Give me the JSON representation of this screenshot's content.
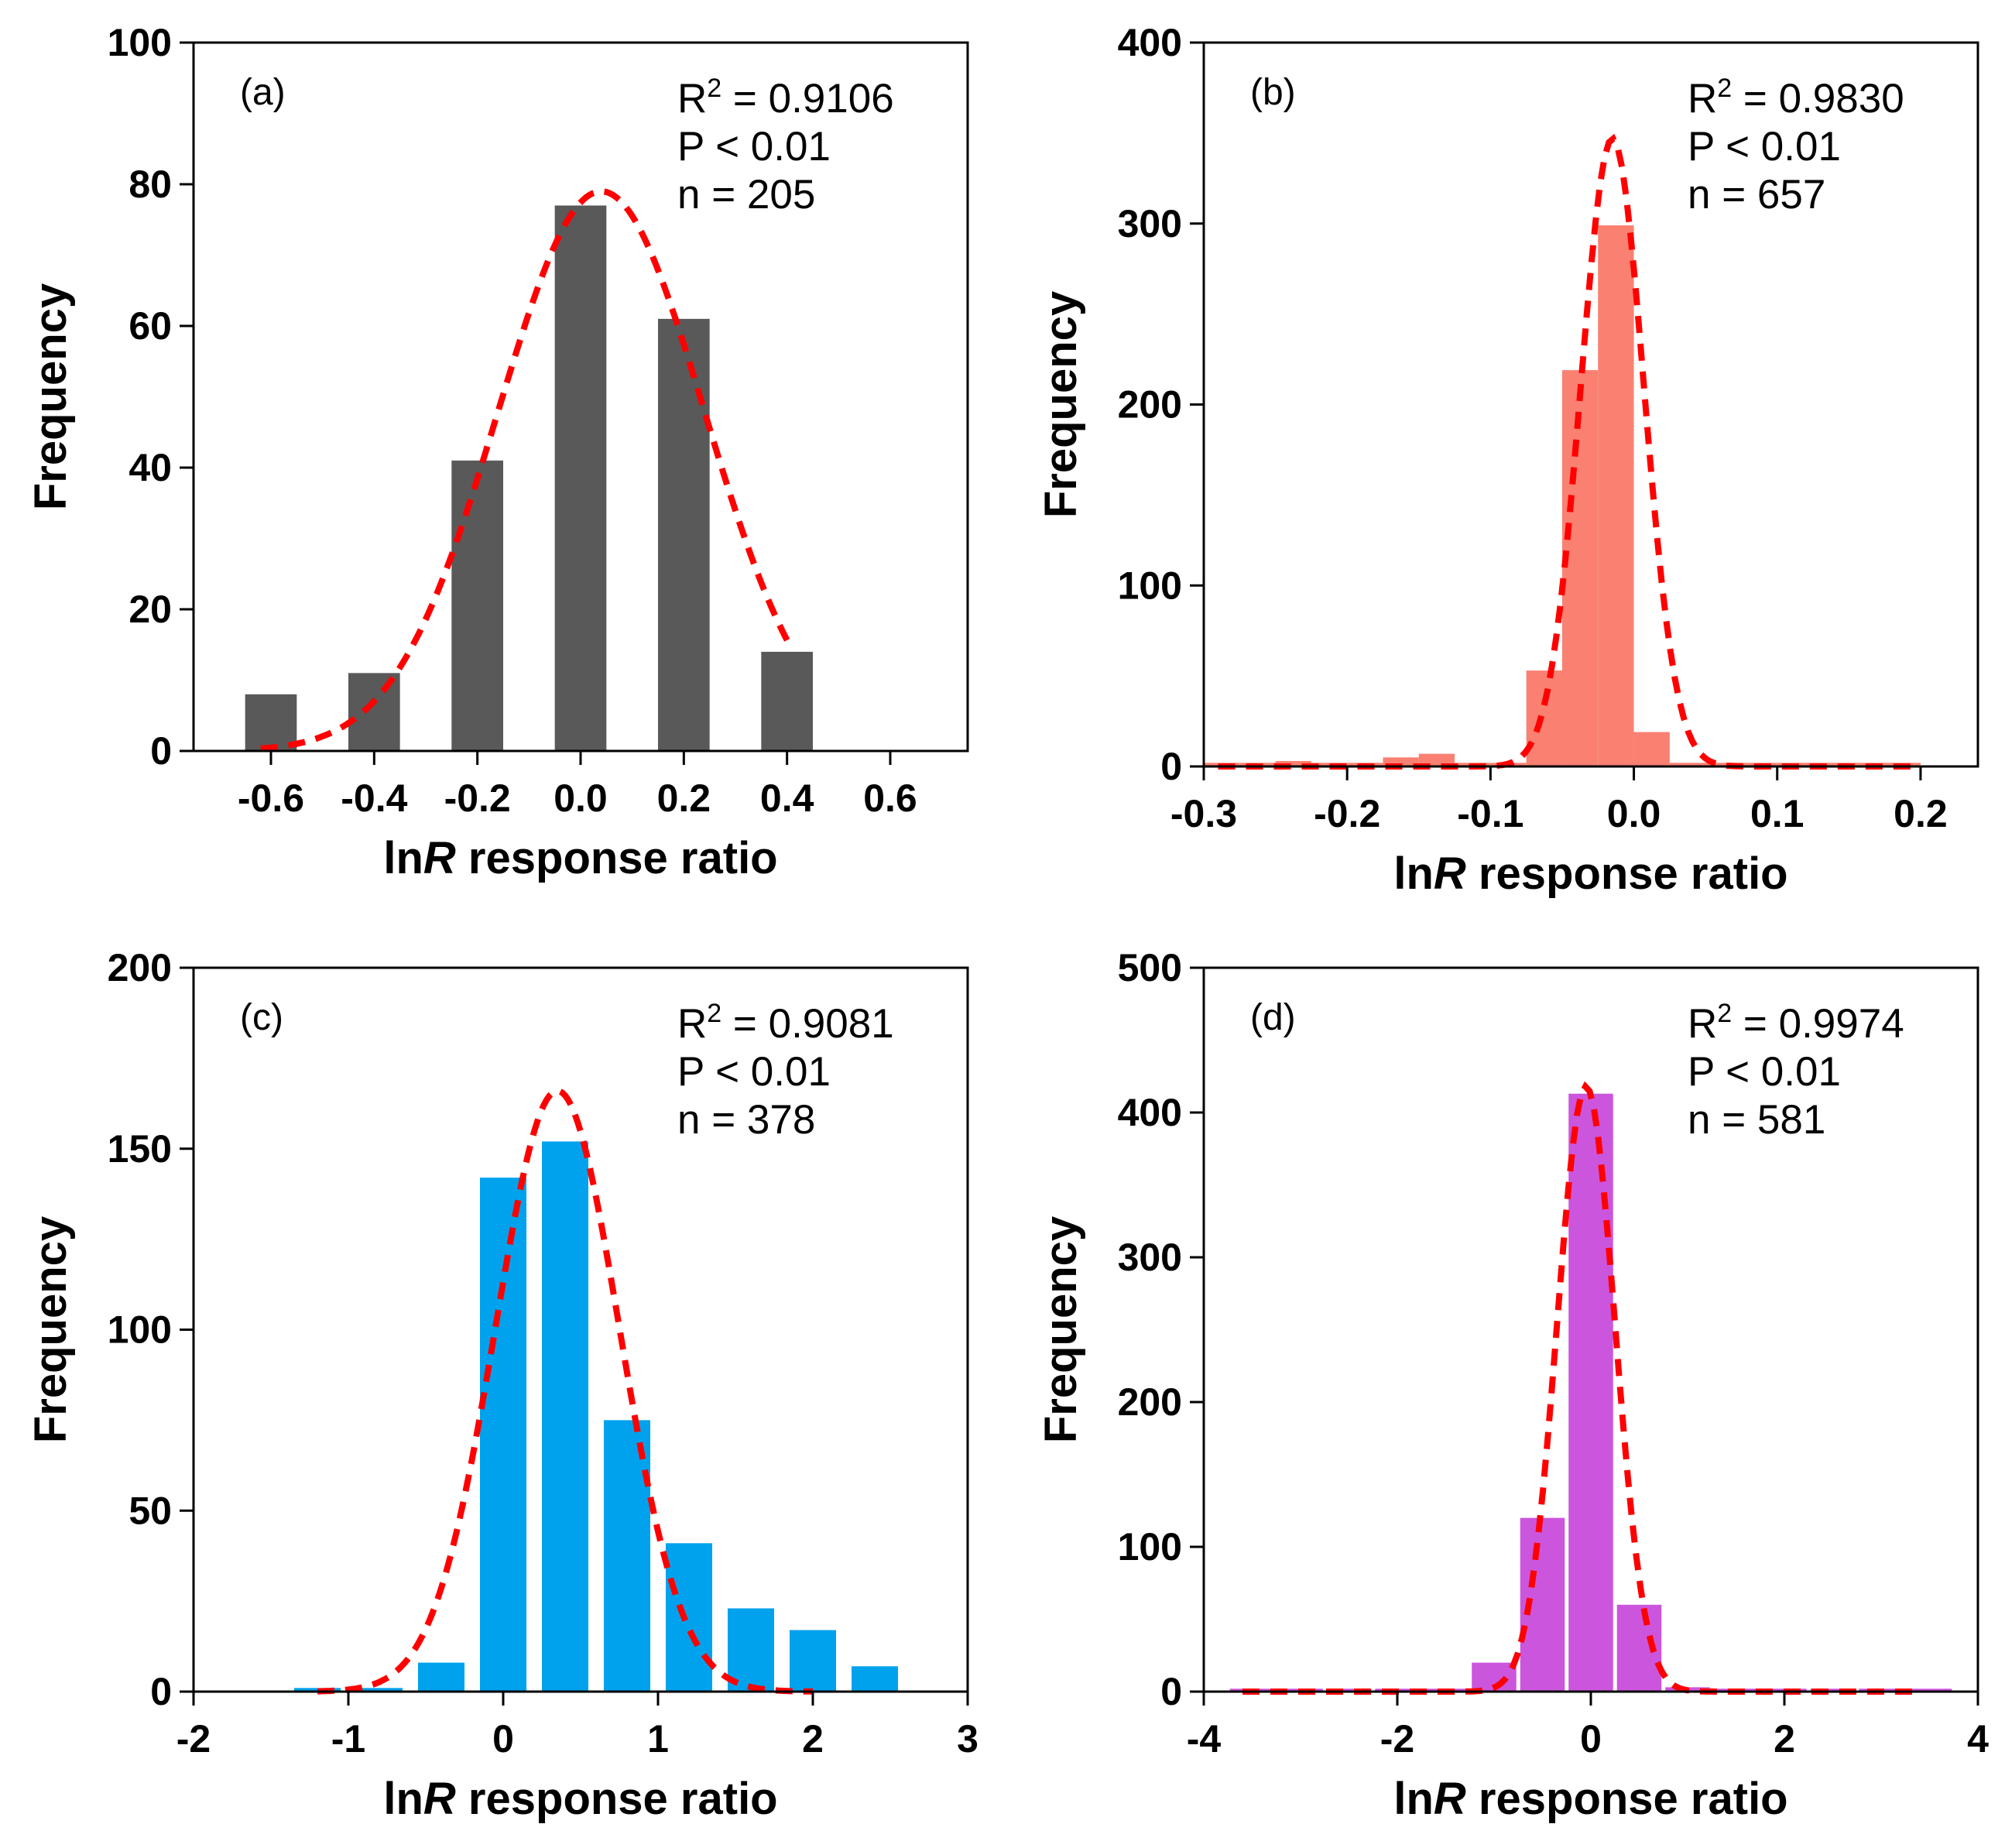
{
  "chart_data": [
    {
      "id": "a",
      "type": "bar",
      "panel_label": "(a)",
      "bar_color": "#595959",
      "fit_color": "#ff0000",
      "stats": {
        "r2_prefix": "R",
        "r2_sup": "2",
        "r2_value": " = 0.9106",
        "p": "P < 0.01",
        "n": "n = 205"
      },
      "xlabel_prefix": "ln",
      "xlabel_italic": "R",
      "xlabel_suffix": " response ratio",
      "ylabel": "Frequency",
      "xlim": [
        -0.75,
        0.75
      ],
      "ylim": [
        0,
        100
      ],
      "xticks": [
        -0.6,
        -0.4,
        -0.2,
        0.0,
        0.2,
        0.4,
        0.6
      ],
      "xtick_labels": [
        "-0.6",
        "-0.4",
        "-0.2",
        "0.0",
        "0.2",
        "0.4",
        "0.6"
      ],
      "yticks": [
        0,
        20,
        40,
        60,
        80,
        100
      ],
      "ytick_labels": [
        "0",
        "20",
        "40",
        "60",
        "80",
        "100"
      ],
      "bin_width": 0.1,
      "bins": [
        {
          "x": -0.6,
          "y": 8
        },
        {
          "x": -0.4,
          "y": 11
        },
        {
          "x": -0.2,
          "y": 41
        },
        {
          "x": 0.0,
          "y": 77
        },
        {
          "x": 0.2,
          "y": 61
        },
        {
          "x": 0.4,
          "y": 14
        }
      ],
      "fit": {
        "peak": 79,
        "mean": 0.04,
        "sd": 0.2,
        "range": [
          -0.62,
          0.4
        ]
      }
    },
    {
      "id": "b",
      "type": "bar",
      "panel_label": "(b)",
      "bar_color": "#fa8072",
      "fit_color": "#ff0000",
      "stats": {
        "r2_prefix": "R",
        "r2_sup": "2",
        "r2_value": " = 0.9830",
        "p": "P < 0.01",
        "n": "n = 657"
      },
      "xlabel_prefix": "ln",
      "xlabel_italic": "R",
      "xlabel_suffix": " response ratio",
      "ylabel": "Frequency",
      "xlim": [
        -0.3,
        0.24
      ],
      "ylim": [
        0,
        400
      ],
      "xticks": [
        -0.3,
        -0.2,
        -0.1,
        0.0,
        0.1,
        0.2
      ],
      "xtick_labels": [
        "-0.3",
        "-0.2",
        "-0.1",
        "0.0",
        "0.1",
        "0.2"
      ],
      "yticks": [
        0,
        100,
        200,
        300,
        400
      ],
      "ytick_labels": [
        "0",
        "100",
        "200",
        "300",
        "400"
      ],
      "bin_width": 0.025,
      "bins": [
        {
          "x": -0.2875,
          "y": 2
        },
        {
          "x": -0.2625,
          "y": 2
        },
        {
          "x": -0.2375,
          "y": 3
        },
        {
          "x": -0.2125,
          "y": 2
        },
        {
          "x": -0.1875,
          "y": 2
        },
        {
          "x": -0.1625,
          "y": 5
        },
        {
          "x": -0.1375,
          "y": 7
        },
        {
          "x": -0.1125,
          "y": 2
        },
        {
          "x": -0.0875,
          "y": 2
        },
        {
          "x": -0.0625,
          "y": 53
        },
        {
          "x": -0.0375,
          "y": 219
        },
        {
          "x": -0.0125,
          "y": 299
        },
        {
          "x": 0.0125,
          "y": 19
        },
        {
          "x": 0.0375,
          "y": 2
        },
        {
          "x": 0.0625,
          "y": 2
        },
        {
          "x": 0.0875,
          "y": 2
        },
        {
          "x": 0.1125,
          "y": 2
        },
        {
          "x": 0.1375,
          "y": 2
        },
        {
          "x": 0.1625,
          "y": 2
        },
        {
          "x": 0.1875,
          "y": 2
        }
      ],
      "fit": {
        "peak": 347,
        "mean": -0.015,
        "sd": 0.022,
        "range": [
          -0.29,
          0.2
        ]
      }
    },
    {
      "id": "c",
      "type": "bar",
      "panel_label": "(c)",
      "bar_color": "#00a2ed",
      "fit_color": "#ff0000",
      "stats": {
        "r2_prefix": "R",
        "r2_sup": "2",
        "r2_value": " = 0.9081",
        "p": "P < 0.01",
        "n": "n = 378"
      },
      "xlabel_prefix": "ln",
      "xlabel_italic": "R",
      "xlabel_suffix": " response ratio",
      "ylabel": "Frequency",
      "xlim": [
        -2,
        3
      ],
      "ylim": [
        0,
        200
      ],
      "xticks": [
        -2,
        -1,
        0,
        1,
        2,
        3
      ],
      "xtick_labels": [
        "-2",
        "-1",
        "0",
        "1",
        "2",
        "3"
      ],
      "yticks": [
        0,
        50,
        100,
        150,
        200
      ],
      "ytick_labels": [
        "0",
        "50",
        "100",
        "150",
        "200"
      ],
      "bin_width": 0.3,
      "bins": [
        {
          "x": -1.2,
          "y": 1
        },
        {
          "x": -0.8,
          "y": 1
        },
        {
          "x": -0.4,
          "y": 8
        },
        {
          "x": 0.0,
          "y": 142
        },
        {
          "x": 0.4,
          "y": 152
        },
        {
          "x": 0.8,
          "y": 75
        },
        {
          "x": 1.2,
          "y": 41
        },
        {
          "x": 1.6,
          "y": 23
        },
        {
          "x": 2.0,
          "y": 17
        },
        {
          "x": 2.4,
          "y": 7
        }
      ],
      "fit": {
        "peak": 166,
        "mean": 0.35,
        "sd": 0.4,
        "range": [
          -1.2,
          2.0
        ]
      }
    },
    {
      "id": "d",
      "type": "bar",
      "panel_label": "(d)",
      "bar_color": "#cc55dd",
      "fit_color": "#ff0000",
      "stats": {
        "r2_prefix": "R",
        "r2_sup": "2",
        "r2_value": " = 0.9974",
        "p": "P < 0.01",
        "n": "n = 581"
      },
      "xlabel_prefix": "ln",
      "xlabel_italic": "R",
      "xlabel_suffix": " response ratio",
      "ylabel": "Frequency",
      "xlim": [
        -4,
        4
      ],
      "ylim": [
        0,
        500
      ],
      "xticks": [
        -4,
        -2,
        0,
        2,
        4
      ],
      "xtick_labels": [
        "-4",
        "-2",
        "0",
        "2",
        "4"
      ],
      "yticks": [
        0,
        100,
        200,
        300,
        400,
        500
      ],
      "ytick_labels": [
        "0",
        "100",
        "200",
        "300",
        "400",
        "500"
      ],
      "bin_width": 0.46,
      "bins": [
        {
          "x": -3.5,
          "y": 2
        },
        {
          "x": -3.0,
          "y": 2
        },
        {
          "x": -2.5,
          "y": 2
        },
        {
          "x": -2.0,
          "y": 2
        },
        {
          "x": -1.5,
          "y": 2
        },
        {
          "x": -1.0,
          "y": 20
        },
        {
          "x": -0.5,
          "y": 120
        },
        {
          "x": 0.0,
          "y": 413
        },
        {
          "x": 0.5,
          "y": 60
        },
        {
          "x": 1.0,
          "y": 3
        },
        {
          "x": 1.5,
          "y": 2
        },
        {
          "x": 2.0,
          "y": 2
        },
        {
          "x": 2.5,
          "y": 2
        },
        {
          "x": 3.0,
          "y": 2
        },
        {
          "x": 3.5,
          "y": 2
        }
      ],
      "fit": {
        "peak": 418,
        "mean": -0.05,
        "sd": 0.3,
        "range": [
          -3.6,
          3.4
        ]
      }
    }
  ]
}
